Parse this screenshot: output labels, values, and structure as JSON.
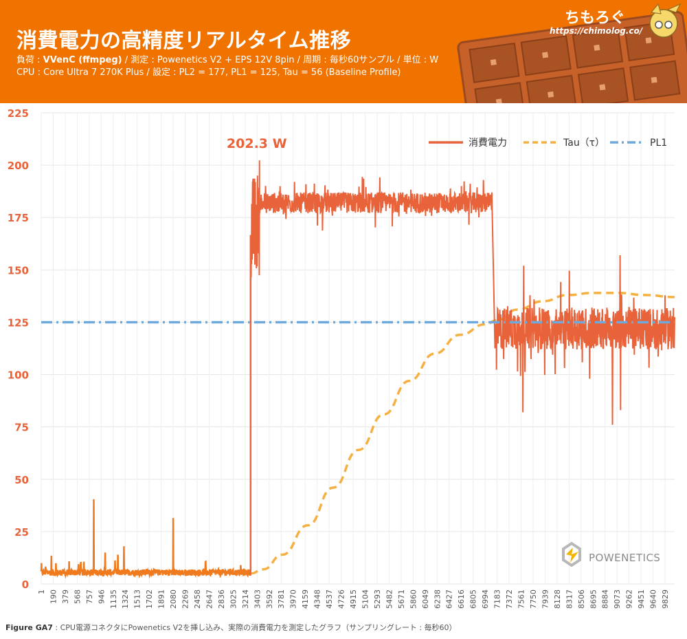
{
  "header": {
    "title": "消費電力の高精度リアルタイム推移",
    "load_label": "負荷 : ",
    "load_value": "VVenC (ffmpeg)",
    "sub1_rest": " / 測定 : Powenetics V2 + EPS 12V 8pin / 周期 : 毎秒60サンプル / 単位 : W",
    "sub2": "CPU : Core Ultra 7 270K Plus / 設定 : PL2 = 177, PL1 = 125, Tau = 56 (Baseline Profile)",
    "brand": "ちもろぐ",
    "url": "https://chimolog.co/"
  },
  "colors": {
    "header_bg": "#f07300",
    "power": "#e8623a",
    "power_idle": "#f07a1e",
    "tau": "#f5b042",
    "pl1": "#6fa8dc",
    "tick_y": "#e8623a",
    "peak": "#e8623a"
  },
  "chart_data": {
    "type": "line",
    "ylim": [
      0,
      225
    ],
    "yticks": [
      "0",
      "25",
      "50",
      "75",
      "100",
      "125",
      "150",
      "175",
      "200",
      "225"
    ],
    "x_range": [
      1,
      9980
    ],
    "xticks": [
      "1",
      "190",
      "379",
      "568",
      "757",
      "946",
      "1135",
      "1324",
      "1513",
      "1702",
      "1891",
      "2080",
      "2269",
      "2458",
      "2647",
      "2836",
      "3025",
      "3214",
      "3403",
      "3592",
      "3781",
      "3970",
      "4159",
      "4348",
      "4537",
      "4726",
      "4915",
      "5104",
      "5293",
      "5482",
      "5671",
      "5860",
      "6049",
      "6238",
      "6427",
      "6616",
      "6805",
      "6994",
      "7183",
      "7372",
      "7561",
      "7750",
      "7939",
      "8128",
      "8317",
      "8506",
      "8695",
      "8884",
      "9073",
      "9262",
      "9451",
      "9640",
      "9829"
    ],
    "peak_label": "202.3 W",
    "peak": {
      "x": 3440,
      "y": 202.3
    },
    "legend": [
      "消費電力",
      "Tau（τ）",
      "PL1"
    ],
    "series": [
      {
        "name": "消費電力",
        "segments": [
          {
            "x_start": 1,
            "x_end": 3300,
            "level": 5.5,
            "noise": 1.5
          },
          {
            "x_start": 3300,
            "x_end": 3440,
            "level": 170,
            "noise": 25
          },
          {
            "x_start": 3440,
            "x_end": 7100,
            "level": 182,
            "noise": 5
          },
          {
            "x_start": 7150,
            "x_end": 9980,
            "level": 122,
            "noise": 10
          }
        ],
        "spikes": [
          [
            830,
            40.5
          ],
          [
            2080,
            31.5
          ],
          [
            1305,
            18
          ],
          [
            1010,
            15
          ],
          [
            1210,
            14
          ],
          [
            160,
            13.5
          ],
          [
            3440,
            202.3
          ],
          [
            3410,
            195
          ],
          [
            3420,
            188
          ],
          [
            7600,
            152
          ],
          [
            7590,
            82
          ],
          [
            9120,
            157
          ],
          [
            9000,
            76
          ],
          [
            9130,
            83
          ],
          [
            8640,
            98
          ],
          [
            7100,
            187
          ]
        ]
      },
      {
        "name": "Tau（τ）",
        "x": [
          3300,
          3500,
          3800,
          4200,
          4600,
          5000,
          5400,
          5800,
          6200,
          6600,
          7000,
          7183,
          7500,
          7900,
          8300,
          8700,
          9100,
          9500,
          9980
        ],
        "y": [
          5,
          7,
          14,
          28,
          46,
          64,
          81,
          97,
          110,
          119,
          124,
          126,
          131,
          135,
          138,
          139,
          139,
          138,
          137
        ]
      },
      {
        "name": "PL1",
        "x": [
          1,
          9980
        ],
        "y": [
          125,
          125
        ]
      }
    ]
  },
  "watermark": "POWENETICS",
  "footer": {
    "fig_label": "Figure GA7",
    "caption": " : CPU電源コネクタにPowenetics V2を挿し込み、実際の消費電力を測定したグラフ（サンプリングレート : 毎秒60）"
  }
}
